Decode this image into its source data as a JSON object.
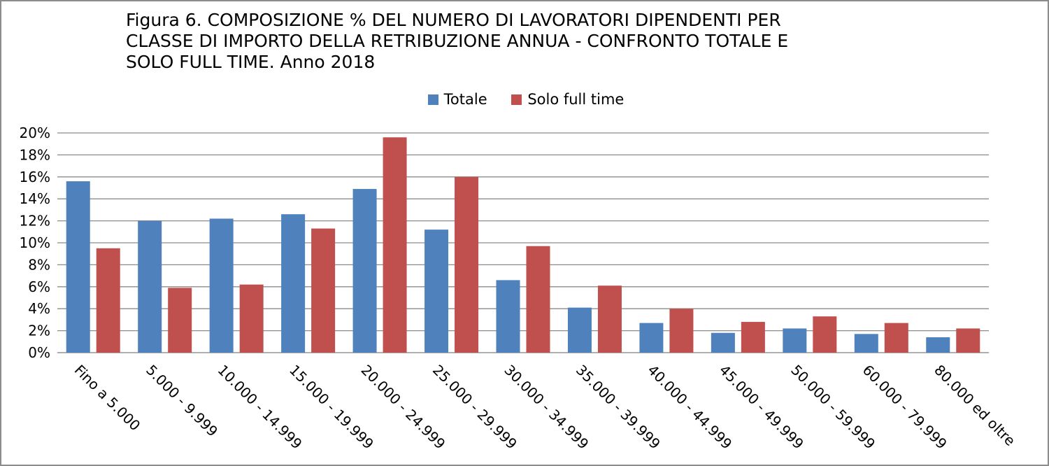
{
  "chart_data": {
    "type": "bar",
    "title_lines": [
      "Figura 6. COMPOSIZIONE % DEL NUMERO DI LAVORATORI DIPENDENTI PER",
      "CLASSE DI IMPORTO DELLA RETRIBUZIONE ANNUA - CONFRONTO TOTALE E",
      "SOLO FULL TIME.  Anno 2018"
    ],
    "categories": [
      "Fino a 5.000",
      "5.000 - 9.999",
      "10.000 - 14.999",
      "15.000 - 19.999",
      "20.000 - 24.999",
      "25.000 - 29.999",
      "30.000 - 34.999",
      "35.000 - 39.999",
      "40.000 - 44.999",
      "45.000 - 49.999",
      "50.000 - 59.999",
      "60.000 - 79.999",
      "80.000 ed oltre"
    ],
    "series": [
      {
        "name": "Totale",
        "color": "#4f81bd",
        "values": [
          15.6,
          12.0,
          12.2,
          12.6,
          14.9,
          11.2,
          6.6,
          4.1,
          2.7,
          1.8,
          2.2,
          1.7,
          1.4
        ]
      },
      {
        "name": "Solo full time",
        "color": "#c0504d",
        "values": [
          9.5,
          5.9,
          6.2,
          11.3,
          19.6,
          16.0,
          9.7,
          6.1,
          4.0,
          2.8,
          3.3,
          2.7,
          2.2
        ]
      }
    ],
    "ylim": [
      0,
      20
    ],
    "yticks": [
      "0%",
      "2%",
      "4%",
      "6%",
      "8%",
      "10%",
      "12%",
      "14%",
      "16%",
      "18%",
      "20%"
    ],
    "grid": true,
    "legend_position": "top"
  }
}
